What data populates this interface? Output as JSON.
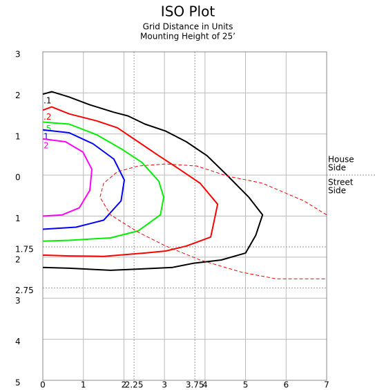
{
  "chart_data": {
    "type": "contour",
    "title": "ISO Plot",
    "subtitle": [
      "Grid Distance in Units",
      "Mounting Height of 25’"
    ],
    "house_side": [
      "House",
      "Side"
    ],
    "street_side": [
      "Street",
      "Side"
    ],
    "xlim": [
      0,
      7
    ],
    "ylim": [
      -5,
      3
    ],
    "xticks": [
      0,
      1,
      2,
      2.25,
      3,
      3.75,
      4,
      5,
      6,
      7
    ],
    "yticks": [
      3,
      2,
      1,
      0,
      {
        "value": -1,
        "label": "1"
      },
      {
        "value": -1.75,
        "label": "1.75"
      },
      {
        "value": -2,
        "label": "2"
      },
      {
        "value": -2.75,
        "label": "2.75"
      },
      {
        "value": -3,
        "label": "3"
      },
      {
        "value": -4,
        "label": "4"
      },
      {
        "value": -5,
        "label": "5"
      }
    ],
    "grid": true,
    "series": [
      {
        "name": ".1",
        "color": "#000000",
        "x": [
          0,
          0.22,
          0.65,
          1.16,
          1.75,
          2.1,
          2.52,
          3.03,
          3.54,
          4.05,
          4.57,
          5.08,
          5.42,
          5.25,
          5,
          4.4,
          3.71,
          3.2,
          2.35,
          1.67,
          0.65,
          0
        ],
        "values": [
          1.97,
          2.03,
          1.9,
          1.71,
          1.53,
          1.44,
          1.24,
          1.07,
          0.81,
          0.47,
          -0.03,
          -0.54,
          -0.97,
          -1.47,
          -1.9,
          -2.07,
          -2.15,
          -2.25,
          -2.29,
          -2.32,
          -2.27,
          -2.25
        ]
      },
      {
        "name": ".2",
        "color": "#ff0000",
        "x": [
          0,
          0.22,
          0.65,
          1.33,
          1.84,
          2.35,
          2.86,
          3.37,
          3.88,
          4.31,
          4.22,
          4.14,
          3.54,
          3.03,
          2.52,
          1.5,
          0.65,
          0
        ],
        "values": [
          1.58,
          1.66,
          1.49,
          1.32,
          1.15,
          0.81,
          0.47,
          0.14,
          -0.2,
          -0.71,
          -1.14,
          -1.51,
          -1.73,
          -1.85,
          -1.9,
          -1.98,
          -1.97,
          -1.95
        ]
      },
      {
        "name": ".5",
        "color": "#00ee00",
        "x": [
          0,
          0.65,
          1.33,
          1.93,
          2.44,
          2.86,
          2.98,
          2.9,
          2.35,
          1.67,
          0.65,
          0
        ],
        "values": [
          1.29,
          1.24,
          0.98,
          0.64,
          0.31,
          -0.15,
          -0.54,
          -0.97,
          -1.36,
          -1.53,
          -1.59,
          -1.61
        ]
      },
      {
        "name": "1",
        "color": "#0000ff",
        "x": [
          0,
          0.65,
          1.24,
          1.75,
          2.01,
          1.93,
          1.5,
          0.82,
          0
        ],
        "values": [
          1.1,
          1.03,
          0.76,
          0.39,
          -0.12,
          -0.63,
          -1.1,
          -1.27,
          -1.32
        ]
      },
      {
        "name": "2",
        "color": "#ff00ff",
        "x": [
          0,
          0.56,
          0.99,
          1.21,
          1.16,
          0.9,
          0.48,
          0
        ],
        "values": [
          0.88,
          0.81,
          0.56,
          0.14,
          -0.37,
          -0.8,
          -0.97,
          -1.0
        ]
      },
      {
        "color": "#ff0000",
        "dashed": true,
        "x": [
          7,
          6.44,
          5.42,
          4.57,
          3.8,
          3.03,
          2.35,
          1.84,
          1.5,
          1.41,
          1.67,
          2.35,
          3.03,
          3.88,
          4.91,
          5.76,
          7
        ],
        "values": [
          -0.97,
          -0.63,
          -0.2,
          -0.03,
          0.22,
          0.27,
          0.22,
          0.08,
          -0.2,
          -0.54,
          -0.97,
          -1.39,
          -1.73,
          -2.07,
          -2.37,
          -2.53,
          -2.53
        ]
      }
    ]
  }
}
